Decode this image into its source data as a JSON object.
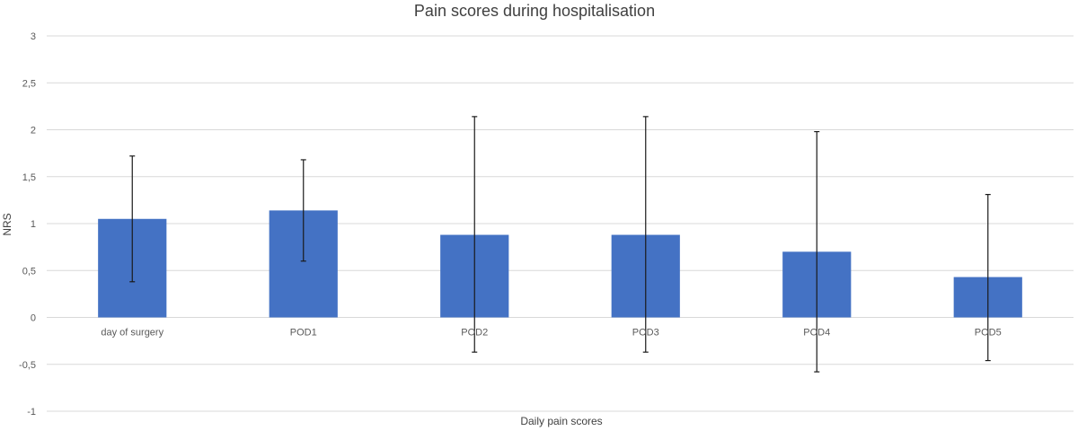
{
  "chart_data": {
    "type": "bar",
    "title": "Pain scores during hospitalisation",
    "xlabel": "Daily pain scores",
    "ylabel": "NRS",
    "categories": [
      "day of surgery",
      "POD1",
      "POD2",
      "POD3",
      "POD4",
      "POD5"
    ],
    "values": [
      1.05,
      1.14,
      0.88,
      0.88,
      0.7,
      0.43
    ],
    "error_bars": [
      {
        "low": 0.38,
        "high": 1.72
      },
      {
        "low": 0.6,
        "high": 1.68
      },
      {
        "low": -0.37,
        "high": 2.14
      },
      {
        "low": -0.37,
        "high": 2.14
      },
      {
        "low": -0.58,
        "high": 1.98
      },
      {
        "low": -0.46,
        "high": 1.31
      }
    ],
    "ylim": [
      -1,
      3
    ],
    "yticks": [
      -1,
      -0.5,
      0,
      0.5,
      1,
      1.5,
      2,
      2.5,
      3
    ],
    "ytick_labels": [
      "-1",
      "-0,5",
      "0",
      "0,5",
      "1",
      "1,5",
      "2",
      "2,5",
      "3"
    ],
    "grid": true,
    "legend": "none",
    "bar_color": "#4472c4",
    "gridline_color": "#d9d9d9",
    "error_bar_color": "#1a1a1a"
  }
}
